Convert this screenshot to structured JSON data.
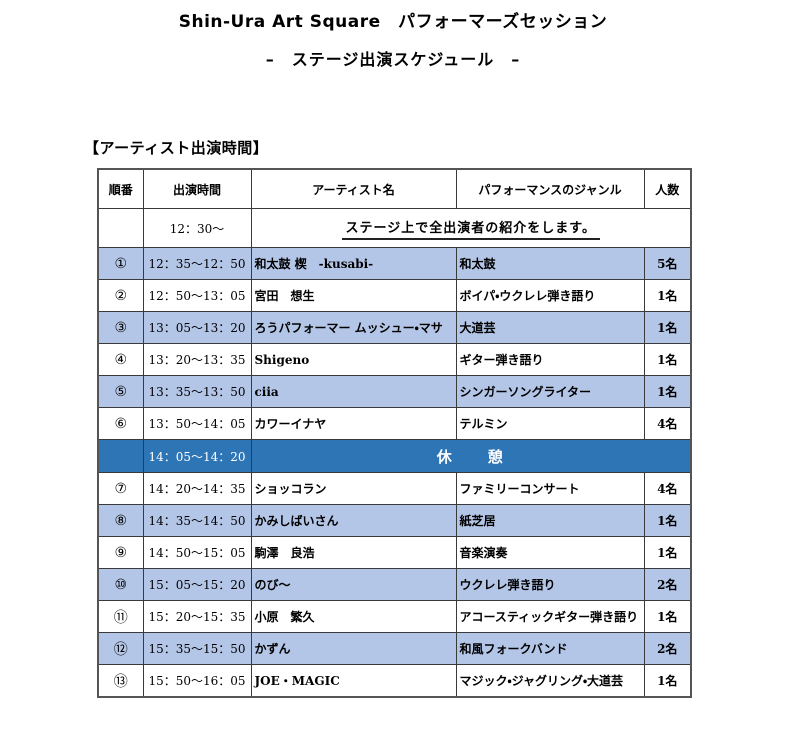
{
  "page": {
    "title": "Shin-Ura Art Square　パフォーマーズセッション",
    "subtitle": "–　ステージ出演スケジュール　–",
    "section_heading": "【アーティスト出演時間】"
  },
  "table": {
    "headers": [
      "順番",
      "出演時間",
      "アーティスト名",
      "パフォーマンスのジャンル",
      "人数"
    ],
    "intro_row": {
      "time": "12：30～",
      "note": "ステージ上で全出演者の紹介をします。"
    },
    "rows": [
      {
        "no": "①",
        "time": "12：35～12：50",
        "artist": "和太鼓 楔　-kusabi-",
        "genre": "和太鼓",
        "count": "5名",
        "highlight": true
      },
      {
        "no": "②",
        "time": "12：50～13：05",
        "artist": "宮田　想生",
        "genre": "ボイパ・ウクレレ弾き語り",
        "count": "1名",
        "highlight": false
      },
      {
        "no": "③",
        "time": "13：05～13：20",
        "artist": "ろうパフォーマー ムッシュー・マサ",
        "genre": "大道芸",
        "count": "1名",
        "highlight": true
      },
      {
        "no": "④",
        "time": "13：20～13：35",
        "artist": "Shigeno",
        "genre": "ギター弾き語り",
        "count": "1名",
        "highlight": false
      },
      {
        "no": "⑤",
        "time": "13：35～13：50",
        "artist": "ciia",
        "genre": "シンガーソングライター",
        "count": "1名",
        "highlight": true
      },
      {
        "no": "⑥",
        "time": "13：50～14：05",
        "artist": "カワーイナヤ",
        "genre": "テルミン",
        "count": "4名",
        "highlight": false
      },
      {
        "type": "break",
        "time": "14：05～14：20",
        "label": "休　　憩"
      },
      {
        "no": "⑦",
        "time": "14：20～14：35",
        "artist": "ショッコラン",
        "genre": "ファミリーコンサート",
        "count": "4名",
        "highlight": false
      },
      {
        "no": "⑧",
        "time": "14：35～14：50",
        "artist": "かみしばいさん",
        "genre": "紙芝居",
        "count": "1名",
        "highlight": true
      },
      {
        "no": "⑨",
        "time": "14：50～15：05",
        "artist": "駒澤　良浩",
        "genre": "音楽演奏",
        "count": "1名",
        "highlight": false
      },
      {
        "no": "⑩",
        "time": "15：05～15：20",
        "artist": "のび～",
        "genre": "ウクレレ弾き語り",
        "count": "2名",
        "highlight": true
      },
      {
        "no": "⑪",
        "time": "15：20～15：35",
        "artist": "小原　繁久",
        "genre": "アコースティックギター弾き語り",
        "count": "1名",
        "highlight": false
      },
      {
        "no": "⑫",
        "time": "15：35～15：50",
        "artist": "かずん",
        "genre": "和風フォークバンド",
        "count": "2名",
        "highlight": true
      },
      {
        "no": "⑬",
        "time": "15：50～16：05",
        "artist": "JOE・MAGIC",
        "genre": "マジック・ジャグリング・大道芸",
        "count": "1名",
        "highlight": false
      }
    ],
    "colors": {
      "highlight_row": "#B4C6E7",
      "break_row": "#2E75B6",
      "break_text": "#FFFFFF",
      "border_inner": "#3A3A3A",
      "border_outer": "#555555"
    }
  }
}
